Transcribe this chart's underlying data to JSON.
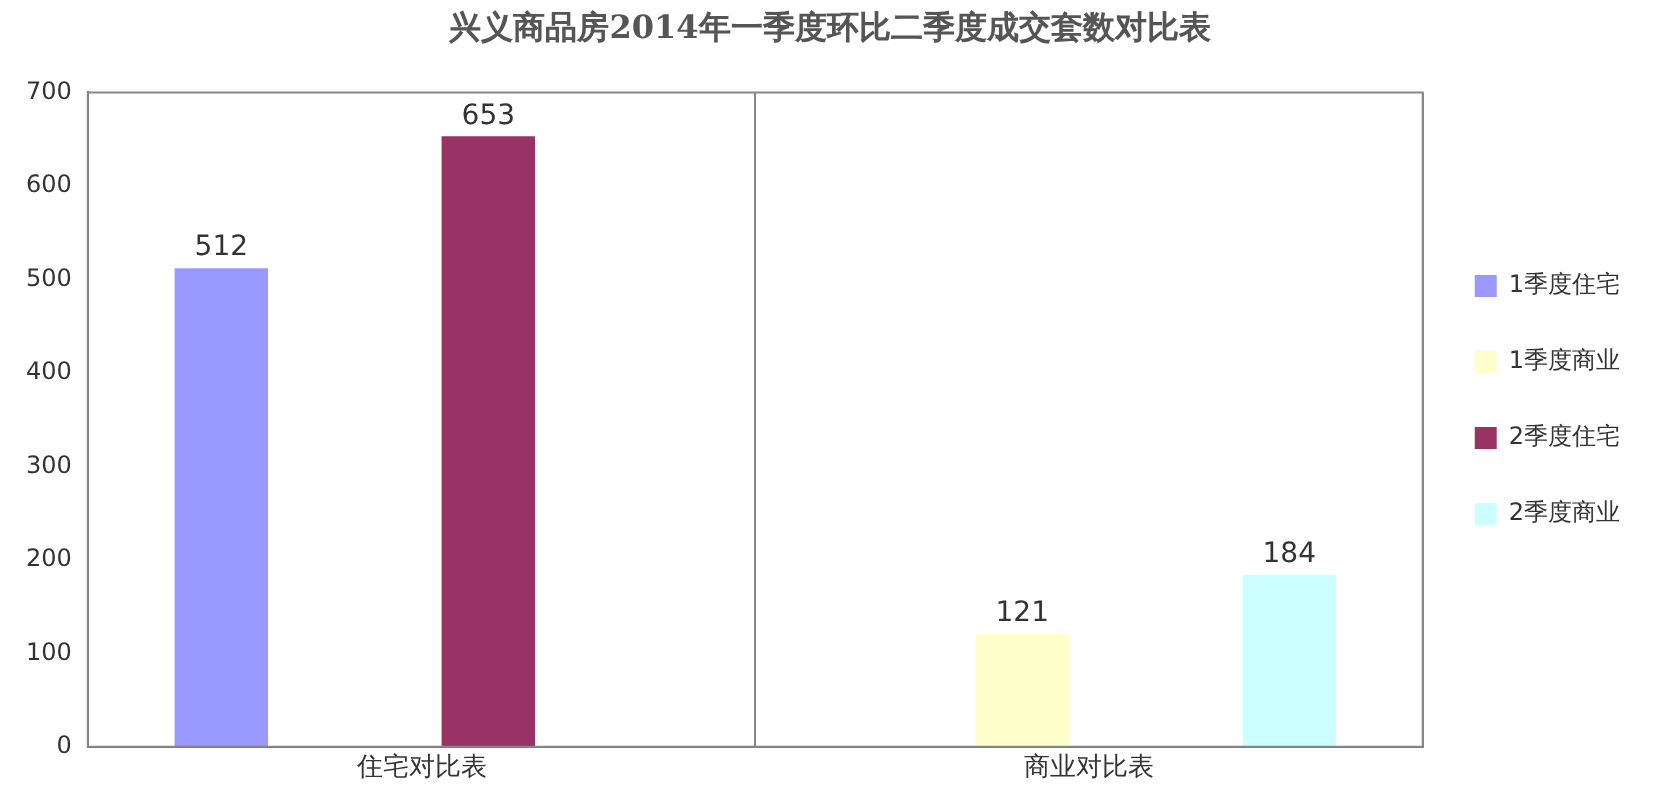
{
  "chart_data": {
    "type": "bar",
    "title": "兴义商品房2014年一季度环比二季度成交套数对比表",
    "categories": [
      "住宅对比表",
      "商业对比表"
    ],
    "series": [
      {
        "name": "1季度住宅",
        "color": "#9999ff",
        "values": [
          512,
          null
        ]
      },
      {
        "name": "1季度商业",
        "color": "#ffffcc",
        "values": [
          null,
          121
        ]
      },
      {
        "name": "2季度住宅",
        "color": "#993366",
        "values": [
          653,
          null
        ]
      },
      {
        "name": "2季度商业",
        "color": "#ccffff",
        "values": [
          null,
          184
        ]
      }
    ],
    "ylim": [
      0,
      700
    ],
    "yticks": [
      0,
      100,
      200,
      300,
      400,
      500,
      600,
      700
    ],
    "grid": "x",
    "legend": "right",
    "data_labels": true
  }
}
